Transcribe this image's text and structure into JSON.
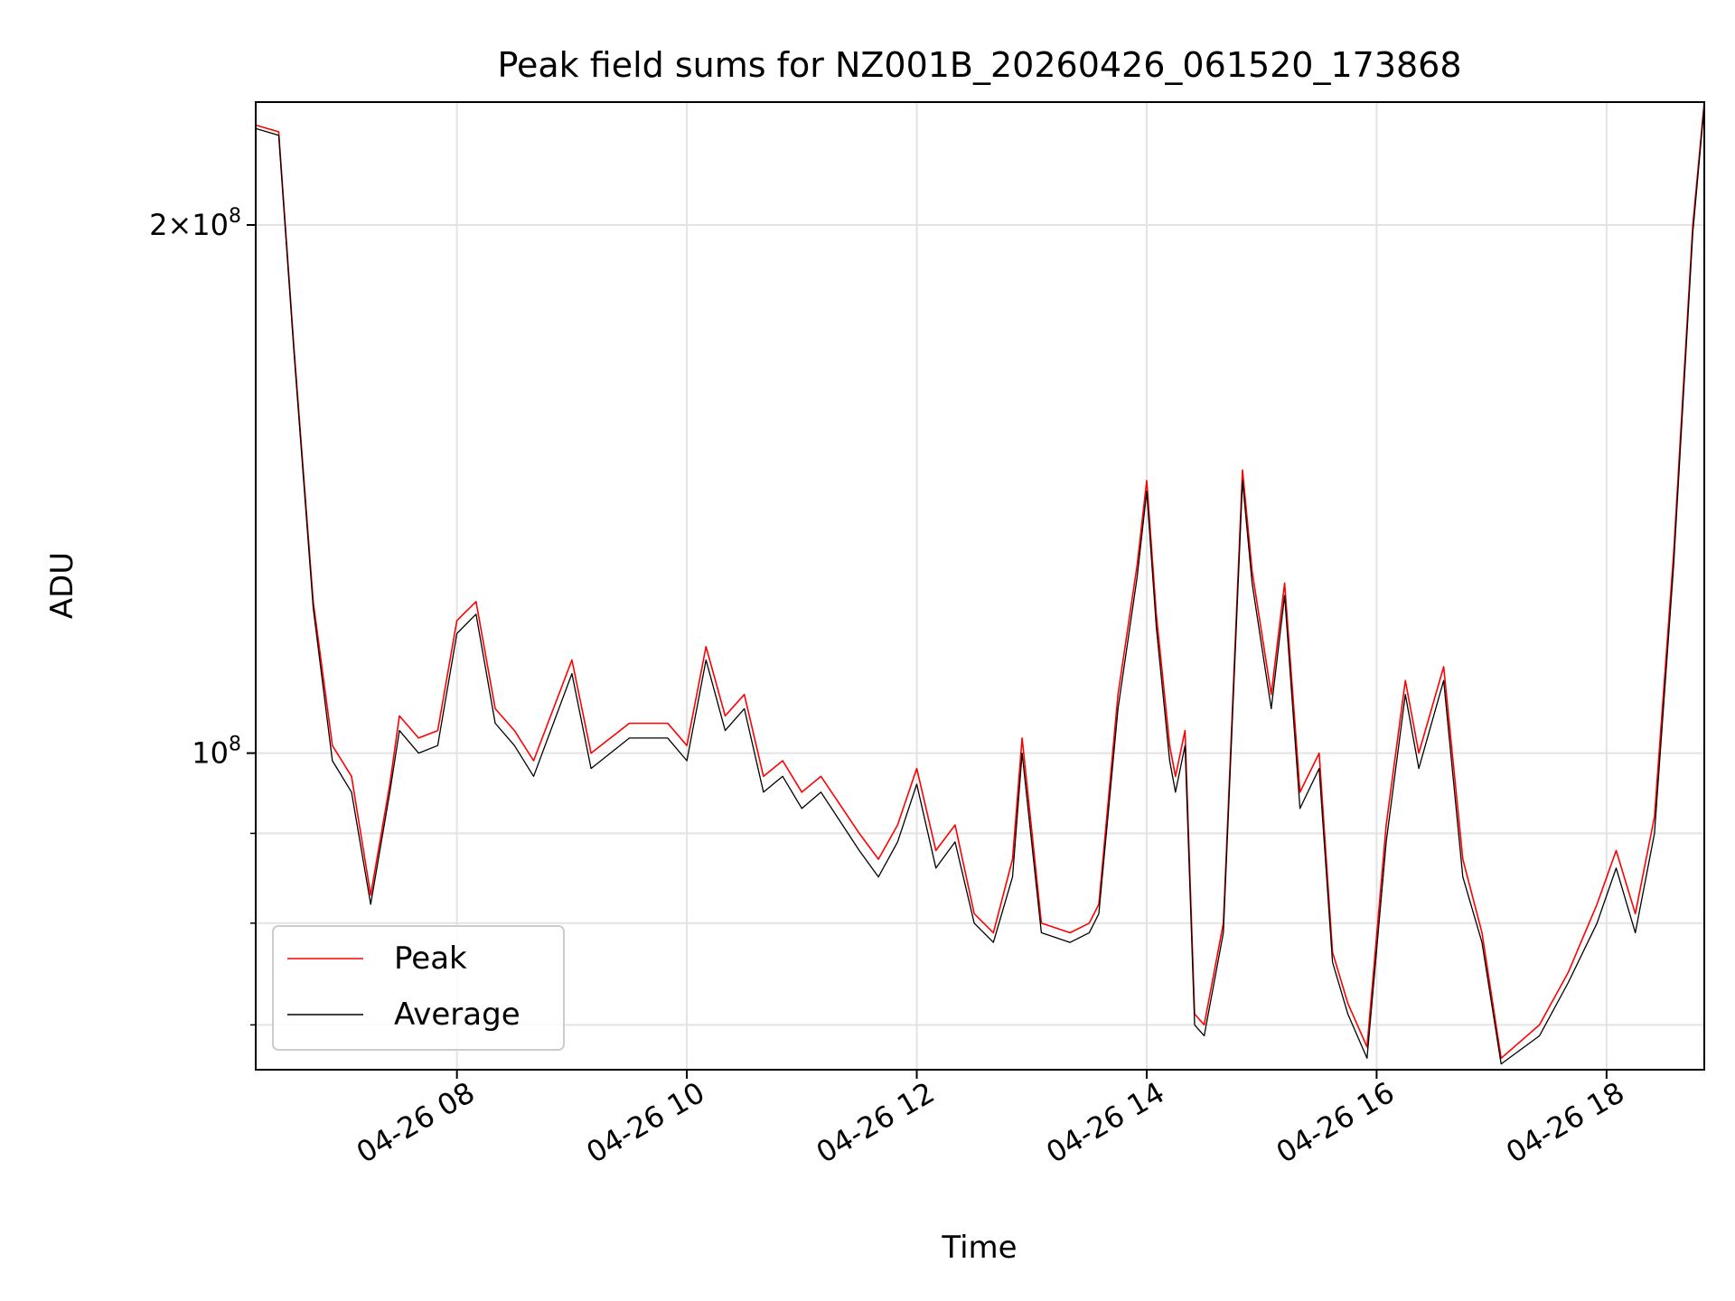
{
  "chart_data": {
    "type": "line",
    "title": "Peak field sums for NZ001B_20260426_061520_173868",
    "xlabel": "Time",
    "ylabel": "ADU",
    "x_ticks": [
      "04-26 08",
      "04-26 10",
      "04-26 12",
      "04-26 14",
      "04-26 16",
      "04-26 18"
    ],
    "y_tick_labels": [
      {
        "value": 200000000,
        "mantissa": "2×10",
        "exp": "8"
      },
      {
        "value": 100000000,
        "mantissa": "10",
        "exp": "8"
      }
    ],
    "y_scale": "log",
    "ylim": [
      66000000,
      235000000
    ],
    "xlim": [
      "2026-04-26 06:15",
      "2026-04-26 18:51"
    ],
    "grid": true,
    "legend_position": "lower-left",
    "series": [
      {
        "name": "Peak",
        "color": "#ff0000",
        "x": [
          "2026-04-26 06:15",
          "2026-04-26 06:27",
          "2026-04-26 06:35",
          "2026-04-26 06:45",
          "2026-04-26 06:55",
          "2026-04-26 07:05",
          "2026-04-26 07:15",
          "2026-04-26 07:25",
          "2026-04-26 07:30",
          "2026-04-26 07:40",
          "2026-04-26 07:50",
          "2026-04-26 08:00",
          "2026-04-26 08:10",
          "2026-04-26 08:20",
          "2026-04-26 08:30",
          "2026-04-26 08:40",
          "2026-04-26 09:00",
          "2026-04-26 09:10",
          "2026-04-26 09:30",
          "2026-04-26 09:50",
          "2026-04-26 10:00",
          "2026-04-26 10:10",
          "2026-04-26 10:20",
          "2026-04-26 10:30",
          "2026-04-26 10:40",
          "2026-04-26 10:50",
          "2026-04-26 11:00",
          "2026-04-26 11:10",
          "2026-04-26 11:30",
          "2026-04-26 11:40",
          "2026-04-26 11:50",
          "2026-04-26 12:00",
          "2026-04-26 12:10",
          "2026-04-26 12:20",
          "2026-04-26 12:30",
          "2026-04-26 12:40",
          "2026-04-26 12:50",
          "2026-04-26 12:55",
          "2026-04-26 13:05",
          "2026-04-26 13:20",
          "2026-04-26 13:30",
          "2026-04-26 13:35",
          "2026-04-26 13:45",
          "2026-04-26 13:55",
          "2026-04-26 14:00",
          "2026-04-26 14:05",
          "2026-04-26 14:12",
          "2026-04-26 14:15",
          "2026-04-26 14:20",
          "2026-04-26 14:25",
          "2026-04-26 14:30",
          "2026-04-26 14:40",
          "2026-04-26 14:50",
          "2026-04-26 14:55",
          "2026-04-26 15:05",
          "2026-04-26 15:12",
          "2026-04-26 15:20",
          "2026-04-26 15:30",
          "2026-04-26 15:37",
          "2026-04-26 15:45",
          "2026-04-26 15:55",
          "2026-04-26 16:05",
          "2026-04-26 16:15",
          "2026-04-26 16:22",
          "2026-04-26 16:35",
          "2026-04-26 16:45",
          "2026-04-26 16:55",
          "2026-04-26 17:05",
          "2026-04-26 17:25",
          "2026-04-26 17:40",
          "2026-04-26 17:55",
          "2026-04-26 18:05",
          "2026-04-26 18:15",
          "2026-04-26 18:25",
          "2026-04-26 18:35",
          "2026-04-26 18:45",
          "2026-04-26 18:51"
        ],
        "values": [
          228000000,
          226000000,
          170000000,
          122000000,
          101000000,
          97000000,
          83000000,
          96000000,
          105000000,
          102000000,
          103000000,
          119000000,
          122000000,
          106000000,
          103000000,
          99000000,
          113000000,
          100000000,
          104000000,
          104000000,
          101000000,
          115000000,
          105000000,
          108000000,
          97000000,
          99000000,
          95000000,
          97000000,
          90000000,
          87000000,
          91000000,
          98000000,
          88000000,
          91000000,
          81000000,
          79000000,
          87000000,
          102000000,
          80000000,
          79000000,
          80000000,
          82000000,
          108000000,
          128000000,
          143000000,
          120000000,
          101000000,
          97000000,
          103000000,
          71000000,
          70000000,
          80000000,
          145000000,
          127000000,
          108000000,
          125000000,
          95000000,
          100000000,
          77000000,
          72000000,
          68000000,
          91000000,
          110000000,
          100000000,
          112000000,
          87000000,
          79000000,
          67000000,
          70000000,
          75000000,
          82000000,
          88000000,
          81000000,
          92000000,
          130000000,
          200000000,
          235000000
        ]
      },
      {
        "name": "Average",
        "color": "#000000",
        "x": [
          "2026-04-26 06:15",
          "2026-04-26 06:27",
          "2026-04-26 06:35",
          "2026-04-26 06:45",
          "2026-04-26 06:55",
          "2026-04-26 07:05",
          "2026-04-26 07:15",
          "2026-04-26 07:25",
          "2026-04-26 07:30",
          "2026-04-26 07:40",
          "2026-04-26 07:50",
          "2026-04-26 08:00",
          "2026-04-26 08:10",
          "2026-04-26 08:20",
          "2026-04-26 08:30",
          "2026-04-26 08:40",
          "2026-04-26 09:00",
          "2026-04-26 09:10",
          "2026-04-26 09:30",
          "2026-04-26 09:50",
          "2026-04-26 10:00",
          "2026-04-26 10:10",
          "2026-04-26 10:20",
          "2026-04-26 10:30",
          "2026-04-26 10:40",
          "2026-04-26 10:50",
          "2026-04-26 11:00",
          "2026-04-26 11:10",
          "2026-04-26 11:30",
          "2026-04-26 11:40",
          "2026-04-26 11:50",
          "2026-04-26 12:00",
          "2026-04-26 12:10",
          "2026-04-26 12:20",
          "2026-04-26 12:30",
          "2026-04-26 12:40",
          "2026-04-26 12:50",
          "2026-04-26 12:55",
          "2026-04-26 13:05",
          "2026-04-26 13:20",
          "2026-04-26 13:30",
          "2026-04-26 13:35",
          "2026-04-26 13:45",
          "2026-04-26 13:55",
          "2026-04-26 14:00",
          "2026-04-26 14:05",
          "2026-04-26 14:12",
          "2026-04-26 14:15",
          "2026-04-26 14:20",
          "2026-04-26 14:25",
          "2026-04-26 14:30",
          "2026-04-26 14:40",
          "2026-04-26 14:50",
          "2026-04-26 14:55",
          "2026-04-26 15:05",
          "2026-04-26 15:12",
          "2026-04-26 15:20",
          "2026-04-26 15:30",
          "2026-04-26 15:37",
          "2026-04-26 15:45",
          "2026-04-26 15:55",
          "2026-04-26 16:05",
          "2026-04-26 16:15",
          "2026-04-26 16:22",
          "2026-04-26 16:35",
          "2026-04-26 16:45",
          "2026-04-26 16:55",
          "2026-04-26 17:05",
          "2026-04-26 17:25",
          "2026-04-26 17:40",
          "2026-04-26 17:55",
          "2026-04-26 18:05",
          "2026-04-26 18:15",
          "2026-04-26 18:25",
          "2026-04-26 18:35",
          "2026-04-26 18:45",
          "2026-04-26 18:51"
        ],
        "values": [
          227000000,
          225000000,
          169000000,
          121000000,
          99000000,
          95000000,
          82000000,
          95000000,
          103000000,
          100000000,
          101000000,
          117000000,
          120000000,
          104000000,
          101000000,
          97000000,
          111000000,
          98000000,
          102000000,
          102000000,
          99000000,
          113000000,
          103000000,
          106000000,
          95000000,
          97000000,
          93000000,
          95000000,
          88000000,
          85000000,
          89000000,
          96000000,
          86000000,
          89000000,
          80000000,
          78000000,
          85000000,
          100000000,
          79000000,
          78000000,
          79000000,
          81000000,
          106000000,
          126000000,
          141000000,
          118000000,
          99000000,
          95000000,
          101000000,
          70000000,
          69000000,
          79000000,
          143000000,
          125000000,
          106000000,
          123000000,
          93000000,
          98000000,
          76000000,
          71000000,
          67000000,
          89000000,
          108000000,
          98000000,
          110000000,
          85000000,
          78000000,
          66500000,
          69000000,
          74000000,
          80000000,
          86000000,
          79000000,
          90000000,
          128000000,
          198000000,
          234000000
        ]
      }
    ]
  }
}
